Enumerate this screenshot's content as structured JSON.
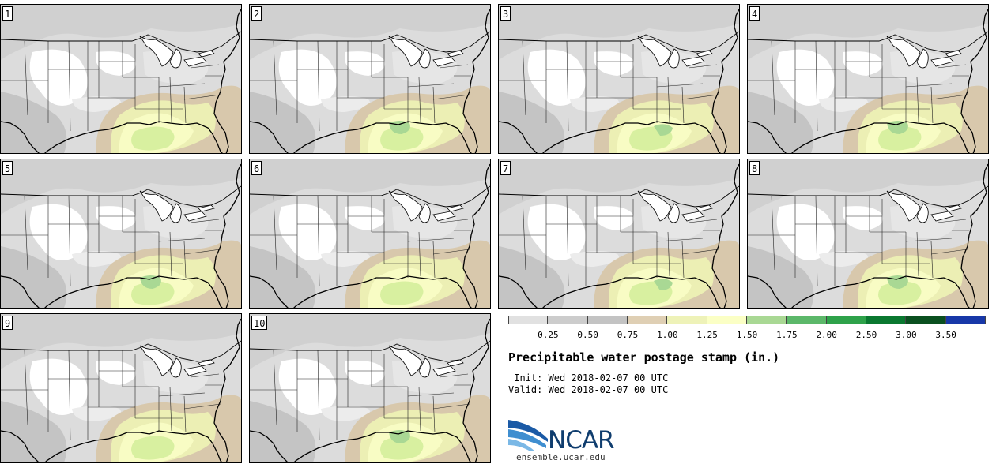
{
  "panels": [
    {
      "label": "1",
      "variant": 0
    },
    {
      "label": "2",
      "variant": 1
    },
    {
      "label": "3",
      "variant": 2
    },
    {
      "label": "4",
      "variant": 3
    },
    {
      "label": "5",
      "variant": 1
    },
    {
      "label": "6",
      "variant": 0
    },
    {
      "label": "7",
      "variant": 2
    },
    {
      "label": "8",
      "variant": 3
    },
    {
      "label": "9",
      "variant": 0
    },
    {
      "label": "10",
      "variant": 1
    }
  ],
  "colorbar": {
    "ticks": [
      "0.25",
      "0.50",
      "0.75",
      "1.00",
      "1.25",
      "1.50",
      "1.75",
      "2.00",
      "2.50",
      "3.00",
      "3.50"
    ],
    "colors": [
      "#e1e1e1",
      "#cccccc",
      "#c3c3c3",
      "#dfcfb4",
      "#eef2b8",
      "#fbffc5",
      "#a9d894",
      "#5cb86a",
      "#2ea24a",
      "#0a7830",
      "#0a5020",
      "#1838a8"
    ]
  },
  "title": "Precipitable water postage stamp (in.)",
  "init": " Init: Wed 2018-02-07 00 UTC",
  "valid": "Valid: Wed 2018-02-07 00 UTC",
  "logo": {
    "text": "NCAR",
    "url": "ensemble.ucar.edu"
  }
}
